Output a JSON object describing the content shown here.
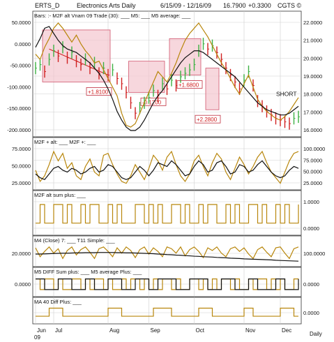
{
  "header": {
    "symbol": "ERTS_D",
    "name": "Electronics Arts Daily",
    "range": "6/15/09 - 12/16/09",
    "last": "16.7900",
    "change": "+0.3300",
    "brand": "CGTS ©"
  },
  "colors": {
    "gold": "#b8860b",
    "black": "#111111",
    "pink_fill": "#f4c6cf",
    "pink_stroke": "#d0566e",
    "bar_green": "#3cb043",
    "bar_red": "#d02020",
    "box_border": "#c03040",
    "grid": "#cfcfcf"
  },
  "chart_data": [
    {
      "type": "line",
      "id": "price",
      "legend": [
        "Bars: :-",
        "M2F alt Vnam 09 Trade (30): ___",
        "M5: ___",
        "M5 average: ___"
      ],
      "left_ticks": [
        "50.0000",
        "0.0000",
        "-50.0000",
        "-100.0000",
        "-150.0000",
        "-200.0000"
      ],
      "right_ticks": [
        "22.0000",
        "21.0000",
        "20.0000",
        "19.0000",
        "18.0000",
        "17.0000",
        "16.0000"
      ],
      "yrange": [
        15.8,
        22.4
      ],
      "close": [
        19.6,
        19.8,
        19.4,
        20.1,
        20.6,
        20.3,
        20.8,
        20.2,
        20.5,
        20.0,
        19.8,
        20.1,
        19.6,
        19.9,
        19.3,
        19.6,
        19.2,
        19.5,
        19.0,
        18.7,
        18.2,
        17.6,
        17.0,
        17.3,
        17.6,
        17.9,
        18.3,
        18.0,
        18.7,
        18.4,
        18.9,
        18.6,
        19.1,
        19.3,
        19.5,
        19.8,
        20.6,
        21.0,
        20.7,
        20.9,
        20.5,
        20.1,
        19.6,
        19.2,
        18.8,
        18.4,
        18.9,
        19.4,
        18.6,
        17.7,
        17.4,
        17.1,
        16.9,
        16.7,
        16.6,
        16.5,
        16.4,
        16.7,
        16.79
      ],
      "m5": [
        20.4,
        20.1,
        20.8,
        21.3,
        21.9,
        22.2,
        21.9,
        21.5,
        21.1,
        21.5,
        21.0,
        20.6,
        20.3,
        19.9,
        20.0,
        19.5,
        19.0,
        18.5,
        18.0,
        17.0,
        16.3,
        16.2,
        16.4,
        17.0,
        17.6,
        18.2,
        18.8,
        19.4,
        19.1,
        18.8,
        19.3,
        19.9,
        20.6,
        21.2,
        21.6,
        21.9,
        22.2,
        21.8,
        21.4,
        20.9,
        20.4,
        19.9,
        19.5,
        19.0,
        18.5,
        18.1,
        18.7,
        19.2,
        18.5,
        17.8,
        17.4,
        17.1,
        16.9,
        16.7,
        16.6,
        16.8,
        17.1,
        17.5,
        17.9
      ],
      "m5_avg": [
        20.8,
        21.3,
        21.9,
        22.0,
        21.6,
        21.2,
        20.9,
        20.7,
        20.6,
        20.5,
        20.3,
        20.1,
        19.9,
        19.6,
        19.3,
        18.9,
        18.4,
        17.8,
        17.1,
        16.6,
        16.2,
        16.0,
        16.0,
        16.2,
        16.6,
        17.1,
        17.6,
        18.0,
        18.3,
        18.7,
        19.1,
        19.5,
        19.9,
        20.2,
        20.4,
        20.6,
        20.6,
        20.5,
        20.3,
        20.1,
        19.9,
        19.7,
        19.5,
        19.3,
        19.1,
        18.8,
        18.5,
        18.2,
        17.9,
        17.6,
        17.4,
        17.2,
        17.1,
        17.0,
        16.9,
        16.9,
        17.0,
        17.2,
        17.4
      ],
      "signals": [
        {
          "label": "+1.8100",
          "start": 2,
          "end": 16,
          "hi": 21.8,
          "lo": 18.8
        },
        {
          "label": "-0.1200",
          "start": 21,
          "end": 28,
          "hi": 20.0,
          "lo": 18.2
        },
        {
          "label": "+1.6800",
          "start": 30,
          "end": 36,
          "hi": 21.3,
          "lo": 19.2
        },
        {
          "label": "+2.2800",
          "start": 38,
          "end": 40,
          "hi": 19.6,
          "lo": 17.2
        }
      ],
      "annotation": "SHORT",
      "trend": {
        "from": [
          3,
          20.7
        ],
        "to": [
          16,
          19.2
        ]
      }
    },
    {
      "type": "line",
      "id": "m2f",
      "legend": [
        "M2F + alt: ___",
        "M2F +: ___"
      ],
      "right_ticks": [
        "100.0000",
        "75.0000",
        "50.0000",
        "25.0000"
      ],
      "left_ticks": [
        "75.0000",
        "50.0000",
        "25.0000"
      ],
      "yrange": [
        0,
        110
      ],
      "gold": [
        45,
        15,
        30,
        60,
        95,
        70,
        90,
        50,
        65,
        30,
        20,
        55,
        75,
        40,
        30,
        85,
        90,
        60,
        35,
        15,
        10,
        30,
        60,
        40,
        20,
        50,
        85,
        70,
        45,
        80,
        95,
        60,
        30,
        15,
        35,
        70,
        85,
        55,
        30,
        65,
        90,
        75,
        40,
        20,
        50,
        80,
        60,
        35,
        55,
        80,
        95,
        65,
        40,
        25,
        10,
        40,
        70,
        90,
        95
      ],
      "black": [
        35,
        25,
        20,
        35,
        50,
        55,
        45,
        40,
        50,
        45,
        35,
        40,
        50,
        55,
        40,
        45,
        60,
        55,
        40,
        25,
        20,
        25,
        40,
        55,
        45,
        30,
        45,
        65,
        60,
        55,
        70,
        60,
        45,
        30,
        35,
        55,
        70,
        60,
        40,
        45,
        65,
        70,
        55,
        35,
        40,
        60,
        55,
        40,
        45,
        60,
        70,
        55,
        40,
        30,
        25,
        30,
        45,
        55,
        50
      ]
    },
    {
      "type": "line",
      "id": "m2f_alt_sum",
      "legend": [
        "M2F alt sum plus: ___"
      ],
      "right_ticks": [
        "1.0000",
        "0.0000"
      ],
      "yrange": [
        -0.5,
        1.3
      ],
      "gold": [
        0,
        1,
        0,
        0,
        1,
        1,
        0,
        1,
        0,
        0,
        1,
        0,
        1,
        1,
        0,
        0,
        1,
        0,
        1,
        0,
        0,
        0,
        1,
        1,
        0,
        1,
        0,
        1,
        0,
        0,
        1,
        1,
        0,
        1,
        0,
        0,
        1,
        0,
        1,
        1,
        0,
        0,
        1,
        0,
        1,
        0,
        0,
        1,
        1,
        0,
        1,
        0,
        0,
        1,
        0,
        1,
        0,
        0,
        1
      ]
    },
    {
      "type": "line",
      "id": "m4",
      "legend": [
        "M4 (Close) 7: ___",
        "T11 Simple: ___"
      ],
      "left_ticks": [
        "20.0000"
      ],
      "right_ticks": [
        "100.0000"
      ],
      "yrange": [
        0,
        110
      ],
      "gold": [
        90,
        40,
        70,
        95,
        60,
        85,
        30,
        75,
        95,
        50,
        80,
        95,
        65,
        30,
        85,
        95,
        70,
        40,
        90,
        60,
        95,
        75,
        35,
        80,
        95,
        55,
        90,
        70,
        40,
        95,
        85,
        60,
        95,
        45,
        80,
        95,
        70,
        35,
        90,
        75,
        95,
        60,
        40,
        85,
        95,
        70,
        90,
        55,
        30,
        80,
        95,
        65,
        40,
        90,
        95,
        60,
        30,
        85,
        95
      ],
      "black": [
        55,
        55,
        56,
        57,
        58,
        59,
        60,
        60,
        61,
        62,
        62,
        63,
        63,
        63,
        64,
        64,
        64,
        64,
        63,
        63,
        62,
        62,
        61,
        60,
        59,
        58,
        57,
        55,
        54,
        52,
        51,
        49,
        48,
        46,
        45,
        43,
        42,
        40,
        39,
        38,
        36,
        35,
        34,
        32,
        31,
        30,
        28,
        27,
        26,
        25,
        24,
        23,
        22,
        20,
        19,
        18,
        17,
        16,
        15
      ]
    },
    {
      "type": "line",
      "id": "m5_diff",
      "legend": [
        "M5 DIFF Sum plus: ___",
        "M5 average Plus: ___"
      ],
      "left_ticks": [
        "0.0000"
      ],
      "right_ticks": [
        "0.0000"
      ],
      "yrange": [
        -0.4,
        1.3
      ],
      "gold": [
        1,
        0,
        1,
        1,
        0,
        1,
        0,
        0,
        1,
        1,
        0,
        1,
        0,
        1,
        1,
        0,
        1,
        0,
        0,
        1,
        0,
        1,
        1,
        0,
        1,
        0,
        1,
        0,
        1,
        1,
        0,
        1,
        0,
        0,
        1,
        1,
        0,
        1,
        0,
        1,
        0,
        1,
        1,
        0,
        1,
        0,
        0,
        1,
        0,
        1,
        1,
        0,
        1,
        0,
        1,
        0,
        0,
        1,
        1
      ],
      "black": [
        1,
        1,
        0,
        0,
        0,
        1,
        1,
        1,
        0,
        0,
        0,
        1,
        1,
        0,
        0,
        0,
        1,
        1,
        1,
        0,
        0,
        0,
        1,
        1,
        1,
        0,
        0,
        1,
        1,
        1,
        1,
        0,
        0,
        0,
        1,
        1,
        1,
        1,
        0,
        0,
        0,
        1,
        1,
        1,
        0,
        0,
        0,
        1,
        1,
        0,
        0,
        0,
        0,
        1,
        1,
        0,
        0,
        0,
        1
      ]
    },
    {
      "type": "line",
      "id": "ma40",
      "legend": [
        "MA 40 Diff Plus: ___"
      ],
      "right_ticks": [
        "0.0000"
      ],
      "yrange": [
        -0.6,
        1.3
      ],
      "gold": [
        0,
        0,
        0,
        1,
        1,
        1,
        0,
        0,
        0,
        0,
        0,
        0,
        0,
        0,
        0,
        0,
        1,
        1,
        1,
        0,
        0,
        0,
        0,
        0,
        0,
        0,
        1,
        1,
        1,
        1,
        0,
        0,
        0,
        0,
        0,
        0,
        1,
        1,
        1,
        0,
        0,
        0,
        0,
        0,
        0,
        0,
        1,
        1,
        0,
        0,
        0,
        0,
        0,
        0,
        1,
        1,
        1,
        0,
        0
      ]
    }
  ],
  "x_axis": {
    "months": [
      {
        "label": "Jun",
        "i": 0
      },
      {
        "label": "Jul",
        "i": 4
      },
      {
        "label": "Aug",
        "i": 16
      },
      {
        "label": "Sep",
        "i": 25
      },
      {
        "label": "Oct",
        "i": 35
      },
      {
        "label": "Nov",
        "i": 46
      },
      {
        "label": "Dec",
        "i": 54
      }
    ],
    "year": "09",
    "period": "Daily"
  }
}
